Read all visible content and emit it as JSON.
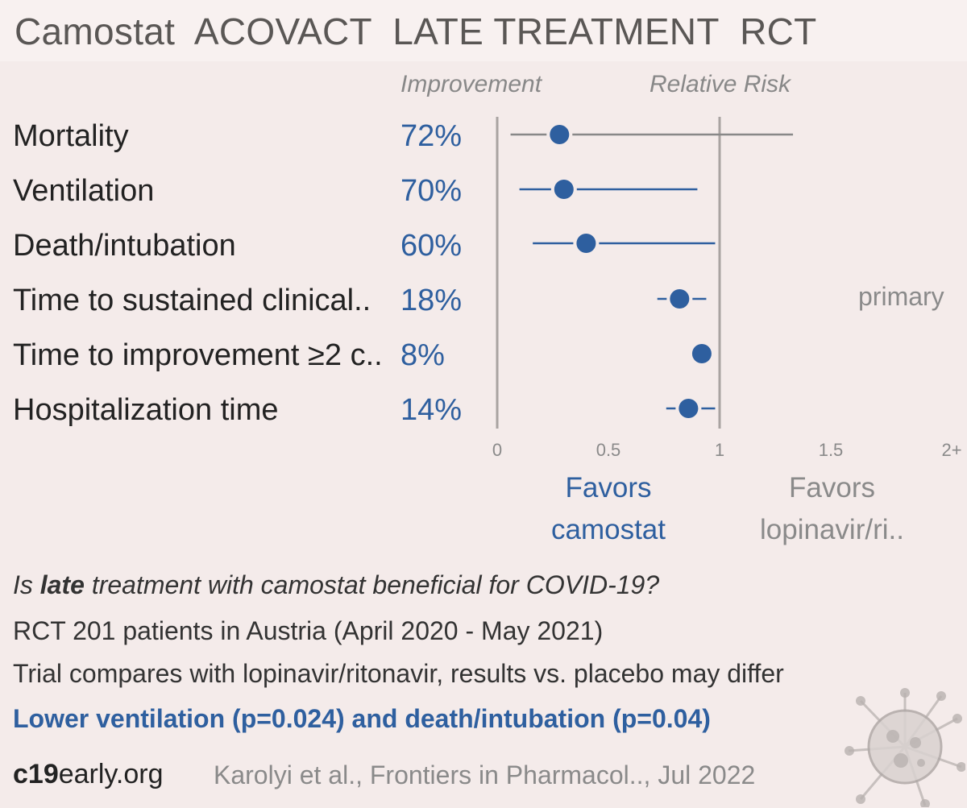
{
  "title": {
    "drug": "Camostat",
    "trial": "ACOVACT",
    "stage": "LATE TREATMENT",
    "design": "RCT"
  },
  "colors": {
    "accent": "#2e5f9f",
    "muted": "#8a8a8a"
  },
  "column_headers": {
    "improvement": "Improvement",
    "relative_risk": "Relative Risk"
  },
  "chart_data": {
    "type": "forest",
    "x_axis": {
      "ticks": [
        "0",
        "0.5",
        "1",
        "1.5",
        "2+"
      ],
      "range": [
        0,
        2
      ]
    },
    "reference_line": 1,
    "rows": [
      {
        "label": "Mortality",
        "improvement": "72%",
        "rr": 0.28,
        "ci": [
          0.06,
          1.33
        ],
        "ci_color": "gray",
        "note": ""
      },
      {
        "label": "Ventilation",
        "improvement": "70%",
        "rr": 0.3,
        "ci": [
          0.1,
          0.9
        ],
        "ci_color": "blue",
        "note": ""
      },
      {
        "label": "Death/intubation",
        "improvement": "60%",
        "rr": 0.4,
        "ci": [
          0.16,
          0.98
        ],
        "ci_color": "blue",
        "note": ""
      },
      {
        "label": "Time to sustained clinical..",
        "improvement": "18%",
        "rr": 0.82,
        "ci": [
          0.72,
          0.94
        ],
        "ci_color": "blue",
        "note": "primary"
      },
      {
        "label": "Time to improvement ≥2 c..",
        "improvement": "8%",
        "rr": 0.92,
        "ci": [
          0.92,
          0.92
        ],
        "ci_color": "blue",
        "note": ""
      },
      {
        "label": "Hospitalization time",
        "improvement": "14%",
        "rr": 0.86,
        "ci": [
          0.76,
          0.98
        ],
        "ci_color": "blue",
        "note": ""
      }
    ],
    "favors_left": [
      "Favors",
      "camostat"
    ],
    "favors_right": [
      "Favors",
      "lopinavir/ri.."
    ]
  },
  "info": {
    "question_prefix": "Is ",
    "question_emph": "late",
    "question_suffix": " treatment with camostat beneficial for COVID-19?",
    "line2": "RCT 201 patients in Austria (April 2020 - May 2021)",
    "line3": "Trial compares with lopinavir/ritonavir, results vs. placebo may differ",
    "line4": "Lower ventilation (p=0.024) and death/intubation (p=0.04)"
  },
  "footer": {
    "site_bold": "c19",
    "site_rest": "early.org",
    "citation": "Karolyi et al., Frontiers in Pharmacol.., Jul 2022"
  }
}
